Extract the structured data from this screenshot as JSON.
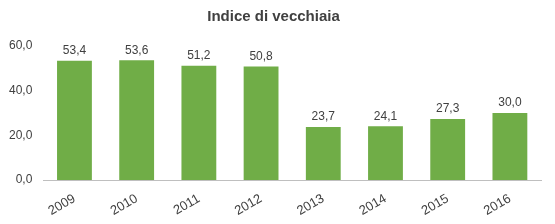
{
  "chart_data": {
    "type": "bar",
    "title": "Indice di vecchiaia",
    "categories": [
      "2009",
      "2010",
      "2011",
      "2012",
      "2013",
      "2014",
      "2015",
      "2016"
    ],
    "values": [
      53.4,
      53.6,
      51.2,
      50.8,
      23.7,
      24.1,
      27.3,
      30.0
    ],
    "value_labels": [
      "53,4",
      "53,6",
      "51,2",
      "50,8",
      "23,7",
      "24,1",
      "27,3",
      "30,0"
    ],
    "color": "#70ad47",
    "ylim": [
      0,
      60
    ],
    "yticks": [
      {
        "value": 0,
        "label": "0,0"
      },
      {
        "value": 20,
        "label": "20,0"
      },
      {
        "value": 40,
        "label": "40,0"
      },
      {
        "value": 60,
        "label": "60,0"
      }
    ],
    "grid": false,
    "data_labels": true
  }
}
